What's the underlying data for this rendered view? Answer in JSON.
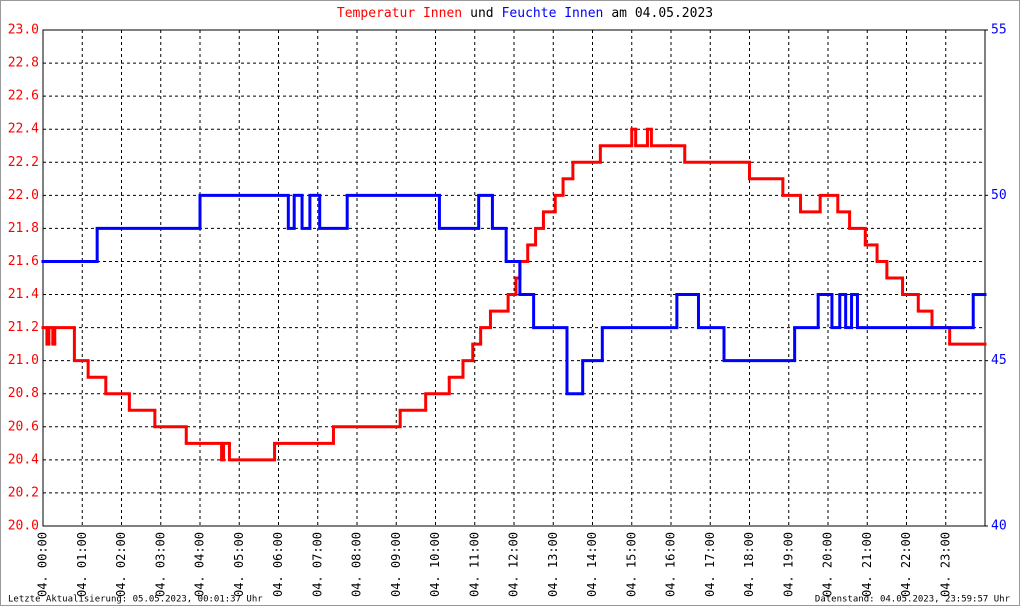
{
  "chart_data": {
    "type": "line",
    "title": [
      {
        "text": "Temperatur Innen",
        "color": "#ff0000"
      },
      {
        "text": "und",
        "color": "#000000"
      },
      {
        "text": "Feuchte Innen",
        "color": "#0000ff"
      },
      {
        "text": "am 04.05.2023",
        "color": "#000000"
      }
    ],
    "footer_left": "Letzte Aktualisierung: 05.05.2023, 00:01:37 Uhr",
    "footer_right": "Datenstand: 04.05.2023, 23:59:57 Uhr",
    "step": true,
    "grid": true,
    "xlim": [
      0,
      24
    ],
    "xticks": [
      {
        "value": 0,
        "label": "04. 00:00"
      },
      {
        "value": 1,
        "label": "04. 01:00"
      },
      {
        "value": 2,
        "label": "04. 02:00"
      },
      {
        "value": 3,
        "label": "04. 03:00"
      },
      {
        "value": 4,
        "label": "04. 04:00"
      },
      {
        "value": 5,
        "label": "04. 05:00"
      },
      {
        "value": 6,
        "label": "04. 06:00"
      },
      {
        "value": 7,
        "label": "04. 07:00"
      },
      {
        "value": 8,
        "label": "04. 08:00"
      },
      {
        "value": 9,
        "label": "04. 09:00"
      },
      {
        "value": 10,
        "label": "04. 10:00"
      },
      {
        "value": 11,
        "label": "04. 11:00"
      },
      {
        "value": 12,
        "label": "04. 12:00"
      },
      {
        "value": 13,
        "label": "04. 13:00"
      },
      {
        "value": 14,
        "label": "04. 14:00"
      },
      {
        "value": 15,
        "label": "04. 15:00"
      },
      {
        "value": 16,
        "label": "04. 16:00"
      },
      {
        "value": 17,
        "label": "04. 17:00"
      },
      {
        "value": 18,
        "label": "04. 18:00"
      },
      {
        "value": 19,
        "label": "04. 19:00"
      },
      {
        "value": 20,
        "label": "04. 20:00"
      },
      {
        "value": 21,
        "label": "04. 21:00"
      },
      {
        "value": 22,
        "label": "04. 22:00"
      },
      {
        "value": 23,
        "label": "04. 23:00"
      }
    ],
    "ylim": [
      20,
      23
    ],
    "yticks": [
      {
        "value": 20,
        "label": "20.0"
      },
      20.2,
      20.4,
      20.6,
      20.8,
      {
        "value": 21,
        "label": "21.0"
      },
      21.2,
      21.4,
      21.6,
      21.8,
      {
        "value": 22,
        "label": "22.0"
      },
      22.2,
      22.4,
      22.6,
      22.8,
      {
        "value": 23,
        "label": "23.0"
      }
    ],
    "y2lim": [
      40,
      55
    ],
    "y2ticks": [
      40,
      45,
      50,
      55
    ],
    "series": [
      {
        "name": "Temperatur Innen",
        "color": "#ff0000",
        "axis": "y",
        "x": [
          0,
          0.1,
          0.15,
          0.25,
          0.3,
          0.8,
          1.15,
          1.6,
          2.2,
          2.85,
          3.65,
          4.55,
          4.6,
          4.75,
          5.9,
          7.4,
          9.1,
          9.75,
          10.35,
          10.7,
          10.95,
          11.15,
          11.4,
          11.85,
          12.05,
          12.15,
          12.35,
          12.55,
          12.75,
          13.05,
          13.25,
          13.5,
          14.2,
          15.0,
          15.1,
          15.4,
          15.5,
          16.35,
          18.0,
          18.85,
          19.3,
          19.8,
          20.25,
          20.55,
          20.95,
          21.25,
          21.5,
          21.9,
          22.3,
          22.65,
          23.1
        ],
        "values": [
          21.2,
          21.1,
          21.2,
          21.1,
          21.2,
          21.0,
          20.9,
          20.8,
          20.7,
          20.6,
          20.5,
          20.4,
          20.5,
          20.4,
          20.5,
          20.6,
          20.7,
          20.8,
          20.9,
          21.0,
          21.1,
          21.2,
          21.3,
          21.4,
          21.5,
          21.6,
          21.7,
          21.8,
          21.9,
          22.0,
          22.1,
          22.2,
          22.3,
          22.4,
          22.3,
          22.4,
          22.3,
          22.2,
          22.1,
          22.0,
          21.9,
          22.0,
          21.9,
          21.8,
          21.7,
          21.6,
          21.5,
          21.4,
          21.3,
          21.2,
          21.1
        ]
      },
      {
        "name": "Feuchte Innen",
        "color": "#0000ff",
        "axis": "y2",
        "x": [
          0,
          1.38,
          4.0,
          6.25,
          6.4,
          6.6,
          6.8,
          7.05,
          7.75,
          10.1,
          11.1,
          11.45,
          11.8,
          12.15,
          12.5,
          13.35,
          13.75,
          14.25,
          16.15,
          16.7,
          17.35,
          19.15,
          19.75,
          20.1,
          20.3,
          20.45,
          20.6,
          20.75,
          23.7
        ],
        "values": [
          48,
          49,
          50,
          49,
          50,
          49,
          50,
          49,
          50,
          49,
          50,
          49,
          48,
          47,
          46,
          44,
          45,
          46,
          47,
          46,
          45,
          46,
          47,
          46,
          47,
          46,
          47,
          46,
          47
        ]
      }
    ]
  }
}
